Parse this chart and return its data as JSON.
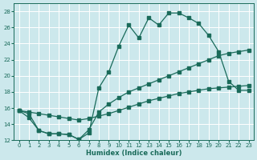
{
  "xlabel": "Humidex (Indice chaleur)",
  "bg_color": "#cce8ec",
  "grid_color": "#b0d4d8",
  "line_color": "#1a6b5a",
  "xlim_min": -0.5,
  "xlim_max": 23.5,
  "ylim_min": 12,
  "ylim_max": 29,
  "xticks": [
    0,
    1,
    2,
    3,
    4,
    5,
    6,
    7,
    8,
    9,
    10,
    11,
    12,
    13,
    14,
    15,
    16,
    17,
    18,
    19,
    20,
    21,
    22,
    23
  ],
  "yticks": [
    12,
    14,
    16,
    18,
    20,
    22,
    24,
    26,
    28
  ],
  "line1_x": [
    0,
    1,
    2,
    3,
    4,
    5,
    6,
    7,
    8,
    9,
    10,
    11,
    12,
    13,
    14,
    15,
    16,
    17,
    18,
    19,
    20,
    21,
    22,
    23
  ],
  "line1_y": [
    15.7,
    15.3,
    13.2,
    12.8,
    12.8,
    12.7,
    12.1,
    12.9,
    18.5,
    20.5,
    23.7,
    26.3,
    24.7,
    27.2,
    26.3,
    27.8,
    27.8,
    27.2,
    26.5,
    25.0,
    23.0,
    19.3,
    18.2,
    18.2
  ],
  "line2_x": [
    0,
    1,
    2,
    3,
    4,
    5,
    6,
    7,
    8,
    9,
    10,
    11,
    12,
    13,
    14,
    15,
    16,
    17,
    18,
    19,
    20,
    21,
    22,
    23
  ],
  "line2_y": [
    15.7,
    15.5,
    15.3,
    15.1,
    14.9,
    14.7,
    14.5,
    14.7,
    15.0,
    15.3,
    15.7,
    16.1,
    16.5,
    16.9,
    17.2,
    17.5,
    17.8,
    18.0,
    18.2,
    18.4,
    18.5,
    18.6,
    18.7,
    18.8
  ],
  "line3_x": [
    0,
    1,
    2,
    3,
    4,
    5,
    6,
    7,
    8,
    9,
    10,
    11,
    12,
    13,
    14,
    15,
    16,
    17,
    18,
    19,
    20,
    21,
    22,
    23
  ],
  "line3_y": [
    15.7,
    14.8,
    13.2,
    12.8,
    12.8,
    12.7,
    12.1,
    13.3,
    15.5,
    16.5,
    17.3,
    18.0,
    18.5,
    19.0,
    19.5,
    20.0,
    20.5,
    21.0,
    21.5,
    22.0,
    22.5,
    22.8,
    23.0,
    23.2
  ]
}
